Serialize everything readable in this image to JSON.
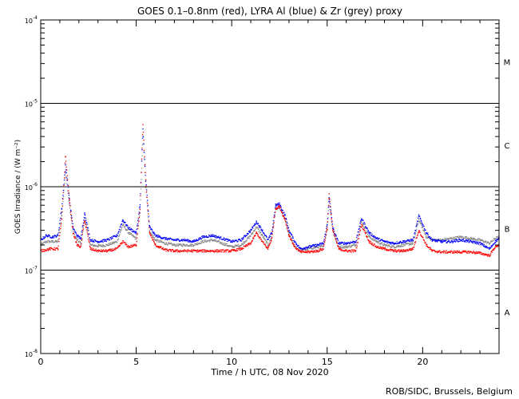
{
  "chart_data": {
    "type": "scatter",
    "title": "GOES 0.1–0.8nm (red), LYRA Al (blue) & Zr (grey) proxy",
    "xlabel": "Time / h UTC, 08 Nov 2020",
    "ylabel": "GOES Irradiance / (W m⁻²)",
    "xlim": [
      0,
      24
    ],
    "ylim": [
      1e-08,
      0.0001
    ],
    "yscale": "log",
    "x_ticks": [
      0,
      5,
      10,
      15,
      20
    ],
    "x_tick_labels": [
      "0",
      "5",
      "10",
      "15",
      "20"
    ],
    "y_ticks": [
      1e-08,
      1e-07,
      1e-06,
      1e-05,
      0.0001
    ],
    "y_tick_labels": [
      {
        "base": "10",
        "exp": "-8"
      },
      {
        "base": "10",
        "exp": "-7"
      },
      {
        "base": "10",
        "exp": "-6"
      },
      {
        "base": "10",
        "exp": "-5"
      },
      {
        "base": "10",
        "exp": "-4"
      }
    ],
    "class_lines": [
      1e-07,
      1e-06,
      1e-05
    ],
    "flare_classes": [
      {
        "label": "A",
        "value": 3.16e-08
      },
      {
        "label": "B",
        "value": 3.16e-07
      },
      {
        "label": "C",
        "value": 3.16e-06
      },
      {
        "label": "M",
        "value": 3.16e-05
      }
    ],
    "colors": {
      "goes": "#ff0000",
      "al": "#0000ff",
      "zr": "#888888"
    },
    "series": [
      {
        "key": "goes",
        "x": [
          0.0,
          0.5,
          0.9,
          1.1,
          1.3,
          1.5,
          1.7,
          1.9,
          2.1,
          2.3,
          2.6,
          3.0,
          3.5,
          4.0,
          4.3,
          4.6,
          5.0,
          5.2,
          5.35,
          5.5,
          5.7,
          6.0,
          6.5,
          7.0,
          7.5,
          8.0,
          8.5,
          9.0,
          9.5,
          10.0,
          10.5,
          11.0,
          11.3,
          11.6,
          11.9,
          12.1,
          12.3,
          12.5,
          12.8,
          13.0,
          13.3,
          13.6,
          14.0,
          14.5,
          14.8,
          15.0,
          15.1,
          15.3,
          15.6,
          16.0,
          16.5,
          16.8,
          17.2,
          17.6,
          18.0,
          18.5,
          19.0,
          19.5,
          19.8,
          20.2,
          20.5,
          21.0,
          21.5,
          22.0,
          22.5,
          23.0,
          23.5,
          23.8,
          24.0
        ],
        "y": [
          1.7e-07,
          1.8e-07,
          1.8e-07,
          4e-07,
          2.3e-06,
          7e-07,
          2.8e-07,
          2e-07,
          1.9e-07,
          4e-07,
          1.8e-07,
          1.7e-07,
          1.7e-07,
          1.8e-07,
          2.2e-07,
          1.9e-07,
          2e-07,
          5.5e-07,
          5.5e-06,
          1.2e-06,
          2.8e-07,
          2e-07,
          1.75e-07,
          1.7e-07,
          1.7e-07,
          1.7e-07,
          1.7e-07,
          1.7e-07,
          1.7e-07,
          1.7e-07,
          1.8e-07,
          2.1e-07,
          2.8e-07,
          2.2e-07,
          1.8e-07,
          2.4e-07,
          5.5e-07,
          5.8e-07,
          4e-07,
          2.6e-07,
          1.9e-07,
          1.65e-07,
          1.65e-07,
          1.7e-07,
          1.8e-07,
          3.2e-07,
          8e-07,
          3e-07,
          1.8e-07,
          1.7e-07,
          1.7e-07,
          3.5e-07,
          2.2e-07,
          1.9e-07,
          1.8e-07,
          1.7e-07,
          1.7e-07,
          1.8e-07,
          3e-07,
          2e-07,
          1.7e-07,
          1.65e-07,
          1.65e-07,
          1.65e-07,
          1.65e-07,
          1.6e-07,
          1.5e-07,
          1.9e-07,
          2e-07
        ]
      },
      {
        "key": "al",
        "x": [
          0.0,
          0.3,
          0.6,
          0.9,
          1.1,
          1.3,
          1.5,
          1.7,
          1.9,
          2.1,
          2.3,
          2.6,
          3.0,
          3.5,
          4.0,
          4.3,
          4.6,
          5.0,
          5.2,
          5.35,
          5.5,
          5.7,
          6.0,
          6.5,
          7.0,
          7.5,
          8.0,
          8.5,
          9.0,
          9.5,
          10.0,
          10.5,
          11.0,
          11.3,
          11.6,
          11.9,
          12.1,
          12.3,
          12.5,
          12.8,
          13.0,
          13.3,
          13.6,
          14.0,
          14.5,
          14.8,
          15.0,
          15.1,
          15.3,
          15.6,
          16.0,
          16.5,
          16.8,
          17.2,
          17.6,
          18.0,
          18.5,
          19.0,
          19.5,
          19.8,
          20.2,
          20.5,
          21.0,
          21.5,
          22.0,
          22.5,
          23.0,
          23.5,
          23.8,
          24.0
        ],
        "y": [
          2.3e-07,
          2.6e-07,
          2.5e-07,
          2.6e-07,
          5.5e-07,
          1.8e-06,
          7e-07,
          3.2e-07,
          2.6e-07,
          2.4e-07,
          4.8e-07,
          2.3e-07,
          2.2e-07,
          2.3e-07,
          2.6e-07,
          4e-07,
          3.2e-07,
          2.8e-07,
          6e-07,
          4.8e-06,
          1.2e-06,
          3.3e-07,
          2.6e-07,
          2.4e-07,
          2.3e-07,
          2.3e-07,
          2.2e-07,
          2.5e-07,
          2.6e-07,
          2.4e-07,
          2.2e-07,
          2.3e-07,
          3e-07,
          3.8e-07,
          3e-07,
          2.3e-07,
          2.8e-07,
          6e-07,
          6.2e-07,
          4.5e-07,
          3e-07,
          2.2e-07,
          1.8e-07,
          1.9e-07,
          2e-07,
          2.1e-07,
          3.5e-07,
          7.5e-07,
          3.2e-07,
          2.1e-07,
          2.1e-07,
          2.2e-07,
          4.2e-07,
          2.8e-07,
          2.4e-07,
          2.2e-07,
          2.1e-07,
          2.2e-07,
          2.3e-07,
          4.5e-07,
          2.8e-07,
          2.3e-07,
          2.2e-07,
          2.2e-07,
          2.3e-07,
          2.2e-07,
          2.1e-07,
          1.8e-07,
          2.2e-07,
          2.4e-07
        ]
      },
      {
        "key": "zr",
        "x": [
          0.0,
          0.3,
          0.6,
          0.9,
          1.1,
          1.3,
          1.5,
          1.7,
          1.9,
          2.1,
          2.3,
          2.6,
          3.0,
          3.5,
          4.0,
          4.3,
          4.6,
          5.0,
          5.2,
          5.35,
          5.5,
          5.7,
          6.0,
          6.5,
          7.0,
          7.5,
          8.0,
          8.5,
          9.0,
          9.5,
          10.0,
          10.5,
          11.0,
          11.3,
          11.6,
          11.9,
          12.1,
          12.3,
          12.5,
          12.8,
          13.0,
          13.3,
          13.6,
          14.0,
          14.5,
          14.8,
          15.0,
          15.1,
          15.3,
          15.6,
          16.0,
          16.5,
          16.8,
          17.2,
          17.6,
          18.0,
          18.5,
          19.0,
          19.5,
          19.8,
          20.2,
          20.5,
          21.0,
          21.5,
          22.0,
          22.5,
          23.0,
          23.5,
          23.8,
          24.0
        ],
        "y": [
          2e-07,
          2.2e-07,
          2.2e-07,
          2.2e-07,
          4.5e-07,
          1.5e-06,
          6e-07,
          2.8e-07,
          2.3e-07,
          2.1e-07,
          4.2e-07,
          2e-07,
          1.95e-07,
          2e-07,
          2.2e-07,
          3.5e-07,
          2.8e-07,
          2.4e-07,
          5e-07,
          4e-06,
          1e-06,
          2.9e-07,
          2.3e-07,
          2.1e-07,
          2e-07,
          2e-07,
          2e-07,
          2.2e-07,
          2.3e-07,
          2.1e-07,
          1.9e-07,
          2e-07,
          2.6e-07,
          3.3e-07,
          2.6e-07,
          2e-07,
          2.5e-07,
          5.5e-07,
          5.6e-07,
          4e-07,
          2.7e-07,
          1.9e-07,
          1.7e-07,
          1.8e-07,
          1.9e-07,
          1.9e-07,
          3.1e-07,
          6.5e-07,
          2.9e-07,
          1.9e-07,
          1.9e-07,
          2e-07,
          3.8e-07,
          2.5e-07,
          2.2e-07,
          2e-07,
          1.9e-07,
          2e-07,
          2.1e-07,
          4e-07,
          2.5e-07,
          2.3e-07,
          2.3e-07,
          2.4e-07,
          2.5e-07,
          2.4e-07,
          2.3e-07,
          2.1e-07,
          2.4e-07,
          2.5e-07
        ]
      }
    ]
  },
  "footer": "ROB/SIDC, Brussels, Belgium"
}
